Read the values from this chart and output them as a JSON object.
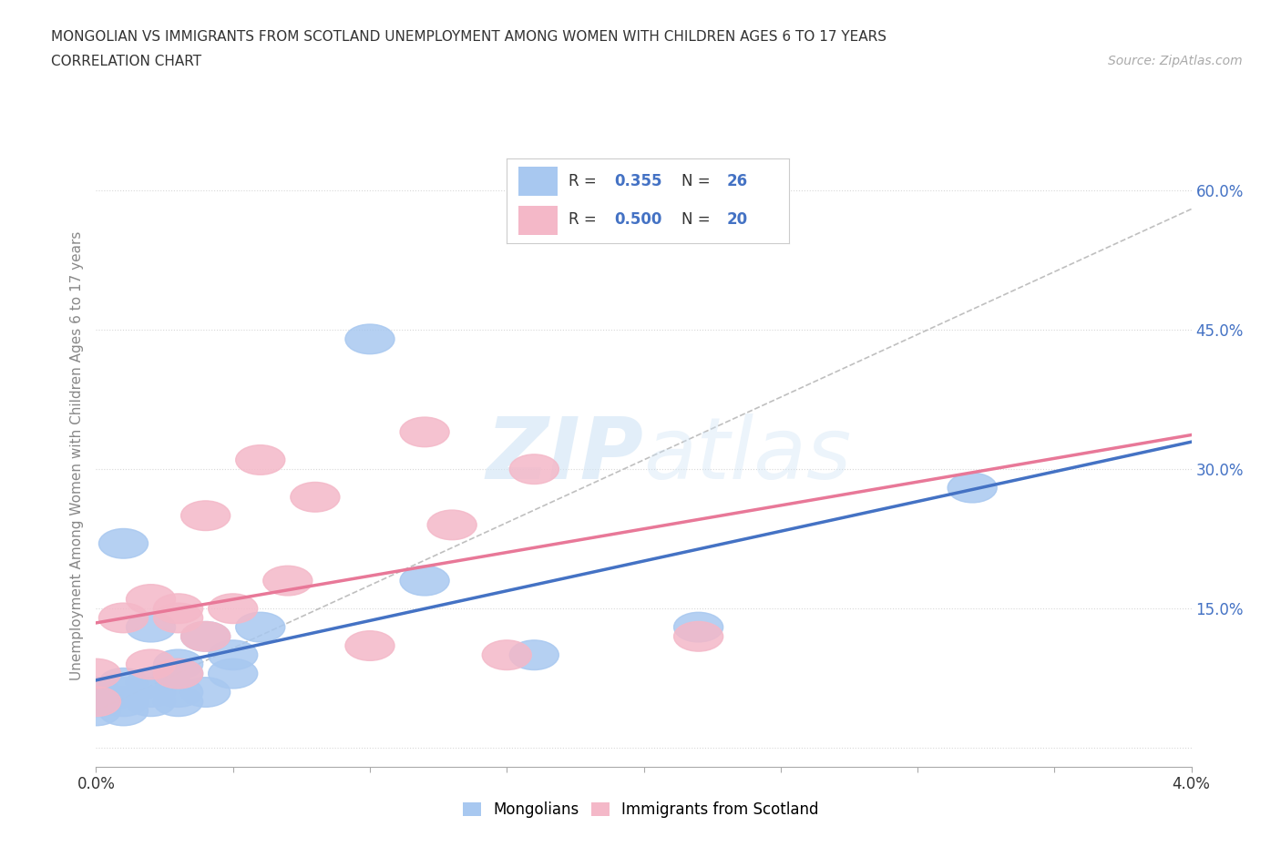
{
  "title_line1": "MONGOLIAN VS IMMIGRANTS FROM SCOTLAND UNEMPLOYMENT AMONG WOMEN WITH CHILDREN AGES 6 TO 17 YEARS",
  "title_line2": "CORRELATION CHART",
  "source_text": "Source: ZipAtlas.com",
  "ylabel": "Unemployment Among Women with Children Ages 6 to 17 years",
  "xlim": [
    0.0,
    0.04
  ],
  "ylim": [
    -0.02,
    0.65
  ],
  "x_ticks": [
    0.0,
    0.005,
    0.01,
    0.015,
    0.02,
    0.025,
    0.03,
    0.035,
    0.04
  ],
  "x_tick_labels": [
    "0.0%",
    "",
    "",
    "",
    "",
    "",
    "",
    "",
    "4.0%"
  ],
  "y_ticks": [
    0.0,
    0.15,
    0.3,
    0.45,
    0.6
  ],
  "y_tick_labels_right": [
    "",
    "15.0%",
    "30.0%",
    "45.0%",
    "60.0%"
  ],
  "mongolian_color": "#a8c8f0",
  "scotland_color": "#f4b8c8",
  "legend_R1": "R = ",
  "legend_V1": "0.355",
  "legend_N1_label": "N = ",
  "legend_N1_val": "26",
  "legend_R2": "R = ",
  "legend_V2": "0.500",
  "legend_N2_label": "N = ",
  "legend_N2_val": "20",
  "mongolian_x": [
    0.0,
    0.0,
    0.0,
    0.001,
    0.001,
    0.001,
    0.001,
    0.001,
    0.002,
    0.002,
    0.002,
    0.002,
    0.003,
    0.003,
    0.003,
    0.003,
    0.004,
    0.004,
    0.005,
    0.005,
    0.006,
    0.01,
    0.012,
    0.016,
    0.022,
    0.032
  ],
  "mongolian_y": [
    0.04,
    0.05,
    0.06,
    0.04,
    0.05,
    0.06,
    0.07,
    0.22,
    0.05,
    0.06,
    0.07,
    0.13,
    0.05,
    0.06,
    0.08,
    0.09,
    0.06,
    0.12,
    0.08,
    0.1,
    0.13,
    0.44,
    0.18,
    0.1,
    0.13,
    0.28
  ],
  "scotland_x": [
    0.0,
    0.0,
    0.001,
    0.002,
    0.002,
    0.003,
    0.003,
    0.003,
    0.004,
    0.004,
    0.005,
    0.006,
    0.007,
    0.008,
    0.01,
    0.012,
    0.013,
    0.015,
    0.016,
    0.022
  ],
  "scotland_y": [
    0.05,
    0.08,
    0.14,
    0.09,
    0.16,
    0.08,
    0.14,
    0.15,
    0.12,
    0.25,
    0.15,
    0.31,
    0.18,
    0.27,
    0.11,
    0.34,
    0.24,
    0.1,
    0.3,
    0.12
  ],
  "watermark_zip": "ZIP",
  "watermark_atlas": "atlas",
  "grid_color": "#d8d8d8",
  "background_color": "#ffffff",
  "mongolian_line_color": "#4472c4",
  "scotland_line_color": "#e87898",
  "ref_line_color": "#b0b0b0",
  "text_color_dark": "#333333",
  "text_color_blue": "#4472c4",
  "text_color_grey": "#888888"
}
